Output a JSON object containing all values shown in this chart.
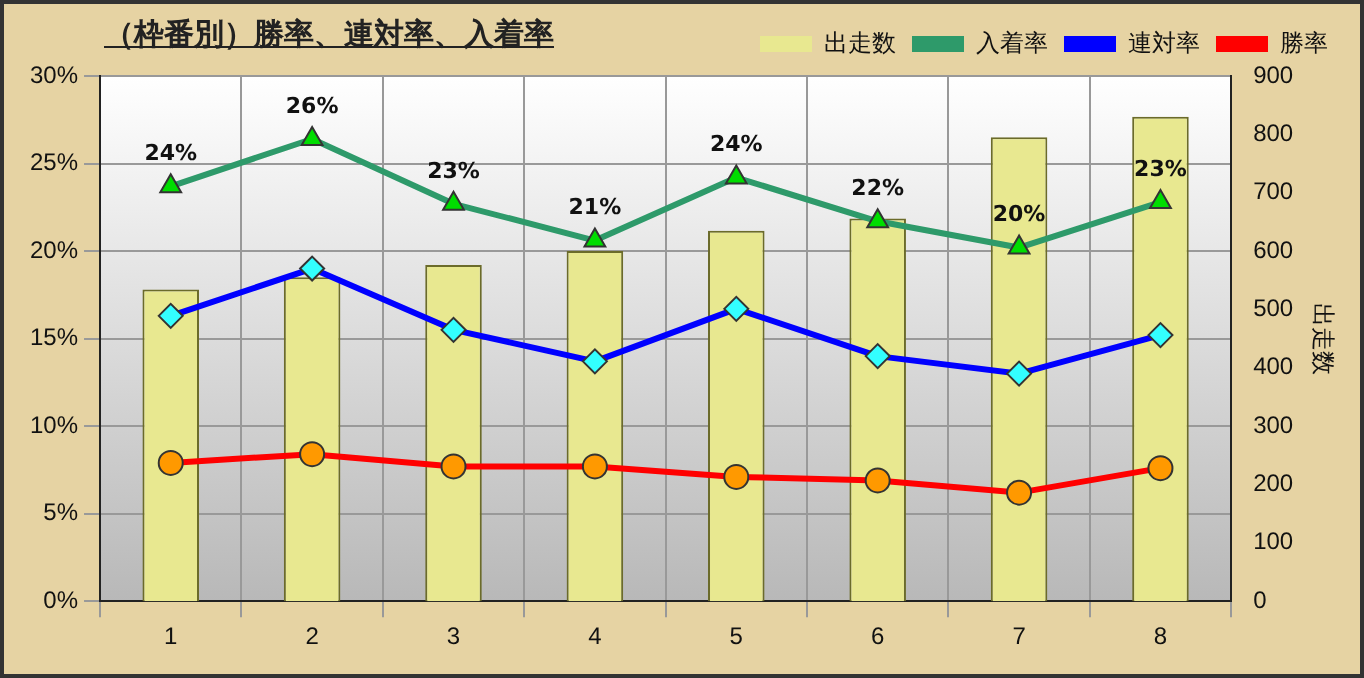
{
  "chart_data": {
    "type": "line",
    "title": "（枠番別）勝率、連対率、入着率",
    "categories": [
      "1",
      "2",
      "3",
      "4",
      "5",
      "6",
      "7",
      "8"
    ],
    "series": [
      {
        "name": "出走数",
        "type": "bar",
        "axis": "y2",
        "color": "#e8e890",
        "values": [
          534,
          555,
          576,
          600,
          635,
          656,
          795,
          830
        ]
      },
      {
        "name": "入着率",
        "color": "#2e9a6a",
        "marker": "triangle",
        "values": [
          23.7,
          26.4,
          22.7,
          20.6,
          24.2,
          21.7,
          20.2,
          22.8
        ],
        "value_labels": [
          "24%",
          "26%",
          "23%",
          "21%",
          "24%",
          "22%",
          "20%",
          "23%"
        ]
      },
      {
        "name": "連対率",
        "color": "#0000ff",
        "marker": "diamond",
        "values": [
          16.3,
          19.0,
          15.5,
          13.7,
          16.7,
          14.0,
          13.0,
          15.2
        ]
      },
      {
        "name": "勝率",
        "color": "#ff0000",
        "marker": "circle",
        "values": [
          7.9,
          8.4,
          7.7,
          7.7,
          7.1,
          6.9,
          6.2,
          7.6
        ]
      }
    ],
    "ylim": [
      0,
      30
    ],
    "yticks": [
      {
        "value": 0,
        "label": "0%"
      },
      {
        "value": 5,
        "label": "5%"
      },
      {
        "value": 10,
        "label": "10%"
      },
      {
        "value": 15,
        "label": "15%"
      },
      {
        "value": 20,
        "label": "20%"
      },
      {
        "value": 25,
        "label": "25%"
      },
      {
        "value": 30,
        "label": "30%"
      }
    ],
    "y2lim": [
      0,
      900
    ],
    "y2ticks": [
      0,
      100,
      200,
      300,
      400,
      500,
      600,
      700,
      800,
      900
    ],
    "y2label": "出走数",
    "grid": true,
    "legend": "top right"
  }
}
